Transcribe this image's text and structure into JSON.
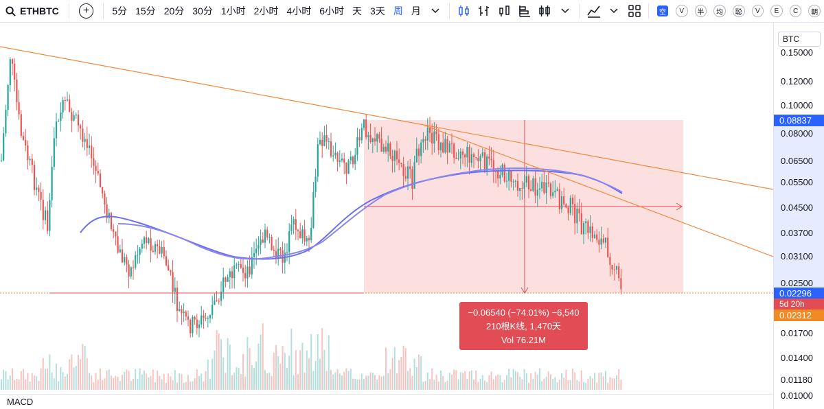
{
  "toolbar": {
    "symbol": "ETHBTC",
    "add_label": "+",
    "intervals": [
      "5分",
      "15分",
      "20分",
      "30分",
      "1小时",
      "2小时",
      "4小时",
      "6小时",
      "天",
      "3天",
      "周",
      "月"
    ],
    "active_interval": "周",
    "pills": [
      "空",
      "V",
      "半",
      "均",
      "聪",
      "V",
      "E",
      "C",
      "朝"
    ]
  },
  "price_scale": {
    "currency": "BTC",
    "ticks": [
      "0.15000",
      "0.12000",
      "0.10000",
      "0.08000",
      "0.06500",
      "0.05500",
      "0.04500",
      "0.03700",
      "0.03100",
      "0.02500",
      "0.01700",
      "0.01400",
      "0.01180",
      "0.01000"
    ],
    "badge_top": "0.08837",
    "badge_current": "0.02296",
    "badge_countdown": "5d 20h",
    "badge_bottom": "0.02312"
  },
  "measure_tooltip": {
    "line1": "−0.06540 (−74.01%) −6,540",
    "line2": "210根K线, 1,470天",
    "line3": "Vol 76.21M"
  },
  "pane": {
    "macd_label": "MACD"
  },
  "colors": {
    "up": "#26a69a",
    "down": "#ef5350",
    "trendline": "#f0883e",
    "ma": "#6a6ff0",
    "measure": "#e24c55",
    "active": "#2962ff"
  }
}
